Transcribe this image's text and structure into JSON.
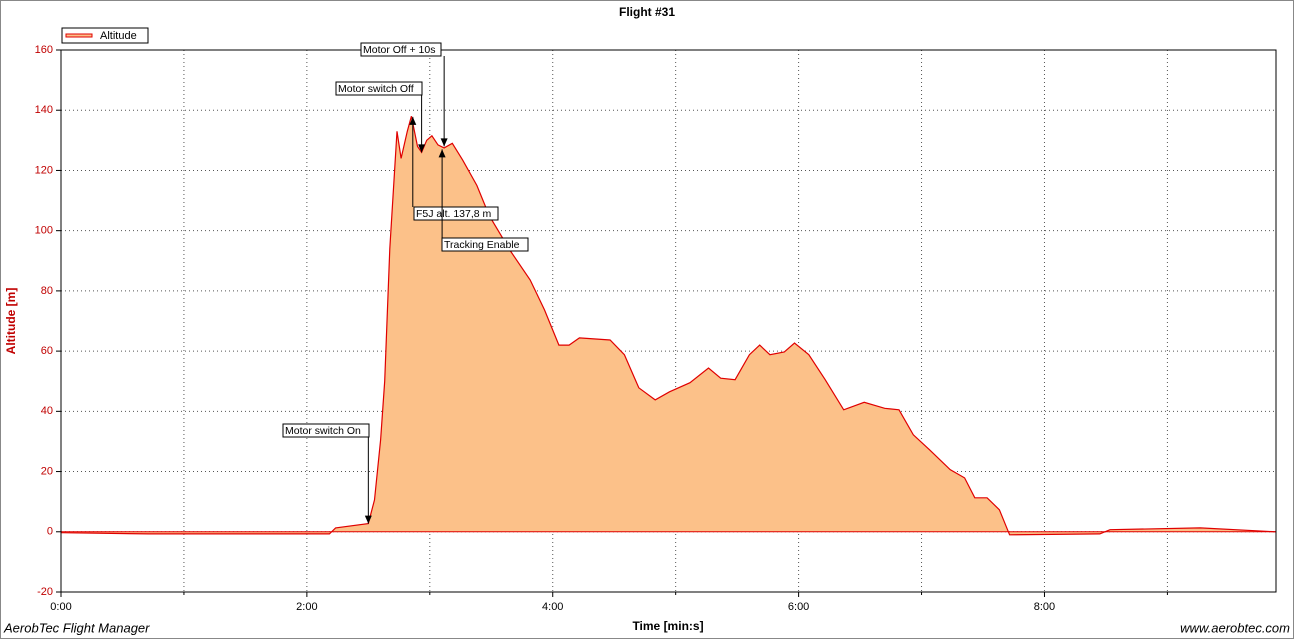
{
  "chart_data": {
    "type": "area",
    "title": "Flight #31",
    "xlabel": "Time [min:s]",
    "ylabel": "Altitude [m]",
    "footer_left": "AerobTec Flight Manager",
    "footer_right": "www.aerobtec.com",
    "x": [
      0,
      43,
      131,
      134,
      150,
      153,
      156,
      158,
      160.5,
      164,
      166,
      169,
      171,
      174,
      176,
      178.5,
      181,
      184,
      187,
      191,
      196,
      203,
      209,
      219,
      229,
      236,
      243,
      248,
      253,
      268,
      275,
      282,
      290,
      297,
      307,
      316,
      322,
      329,
      336,
      341,
      346,
      353,
      358,
      365,
      373,
      382,
      392,
      402,
      409,
      416,
      424,
      434,
      441,
      446,
      452,
      458,
      463,
      507,
      512,
      556,
      593
    ],
    "series": [
      {
        "name": "Altitude",
        "color": "#e00000",
        "fill": "#fcc189",
        "values": [
          -0.3,
          -0.7,
          -0.7,
          1.3,
          2.7,
          10.6,
          30.5,
          50,
          94,
          133,
          124,
          133,
          138,
          128,
          126,
          130,
          131.5,
          128.5,
          127.5,
          129,
          123.5,
          115,
          105,
          93.6,
          83.6,
          73.7,
          62,
          62,
          64.4,
          63.7,
          58.8,
          47.8,
          43.8,
          46.5,
          49.5,
          54.4,
          51,
          50.5,
          58.8,
          62,
          58.8,
          59.7,
          62.7,
          58.8,
          50.5,
          40.5,
          43,
          41,
          40.5,
          32.2,
          27.2,
          20.6,
          17.9,
          11.3,
          11.3,
          7.3,
          -1,
          -0.7,
          0.7,
          1.3,
          0
        ]
      }
    ],
    "xlim": [
      0,
      593
    ],
    "xticks": [
      {
        "value": 0,
        "label": "0:00"
      },
      {
        "value": 120,
        "label": "2:00"
      },
      {
        "value": 240,
        "label": "4:00"
      },
      {
        "value": 360,
        "label": "6:00"
      },
      {
        "value": 480,
        "label": "8:00"
      }
    ],
    "x_minor_ticks": [
      60,
      180,
      300,
      420,
      540
    ],
    "ylim": [
      -20,
      160
    ],
    "yticks": [
      -20,
      0,
      20,
      40,
      60,
      80,
      100,
      120,
      140,
      160
    ],
    "grid": true,
    "legend": "upper left",
    "annotations": [
      {
        "text": "Motor switch On",
        "x": 150,
        "y": 2.7
      },
      {
        "text": "Motor Off + 10s",
        "x": 187,
        "y": 128
      },
      {
        "text": "Motor switch Off",
        "x": 176,
        "y": 126
      },
      {
        "text": "F5J alt. 137,8 m",
        "x": 171.7,
        "y": 137.8
      },
      {
        "text": "Tracking Enable",
        "x": 186,
        "y": 127
      }
    ]
  }
}
